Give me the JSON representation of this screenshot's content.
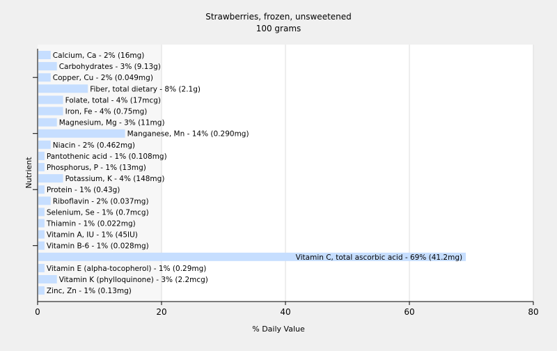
{
  "chart_data": {
    "type": "bar",
    "orientation": "horizontal",
    "title": "Strawberries, frozen, unsweetened",
    "subtitle": "100 grams",
    "xlabel": "% Daily Value",
    "ylabel": "Nutrient",
    "xlim": [
      0,
      80
    ],
    "xticks": [
      0,
      20,
      40,
      60,
      80
    ],
    "grid": true,
    "bar_color": "#c6deff",
    "categories": [
      "Calcium, Ca",
      "Carbohydrates",
      "Copper, Cu",
      "Fiber, total dietary",
      "Folate, total",
      "Iron, Fe",
      "Magnesium, Mg",
      "Manganese, Mn",
      "Niacin",
      "Pantothenic acid",
      "Phosphorus, P",
      "Potassium, K",
      "Protein",
      "Riboflavin",
      "Selenium, Se",
      "Thiamin",
      "Vitamin A, IU",
      "Vitamin B-6",
      "Vitamin C, total ascorbic acid",
      "Vitamin E (alpha-tocopherol)",
      "Vitamin K (phylloquinone)",
      "Zinc, Zn"
    ],
    "values": [
      2,
      3,
      2,
      8,
      4,
      4,
      3,
      14,
      2,
      1,
      1,
      4,
      1,
      2,
      1,
      1,
      1,
      1,
      69,
      1,
      3,
      1
    ],
    "labels": [
      "Calcium, Ca - 2% (16mg)",
      "Carbohydrates - 3% (9.13g)",
      "Copper, Cu - 2% (0.049mg)",
      "Fiber, total dietary - 8% (2.1g)",
      "Folate, total - 4% (17mcg)",
      "Iron, Fe - 4% (0.75mg)",
      "Magnesium, Mg - 3% (11mg)",
      "Manganese, Mn - 14% (0.290mg)",
      "Niacin - 2% (0.462mg)",
      "Pantothenic acid - 1% (0.108mg)",
      "Phosphorus, P - 1% (13mg)",
      "Potassium, K - 4% (148mg)",
      "Protein - 1% (0.43g)",
      "Riboflavin - 2% (0.037mg)",
      "Selenium, Se - 1% (0.7mcg)",
      "Thiamin - 1% (0.022mg)",
      "Vitamin A, IU - 1% (45IU)",
      "Vitamin B-6 - 1% (0.028mg)",
      "Vitamin C, total ascorbic acid - 69% (41.2mg)",
      "Vitamin E (alpha-tocopherol) - 1% (0.29mg)",
      "Vitamin K (phylloquinone) - 3% (2.2mcg)",
      "Zinc, Zn - 1% (0.13mg)"
    ]
  }
}
